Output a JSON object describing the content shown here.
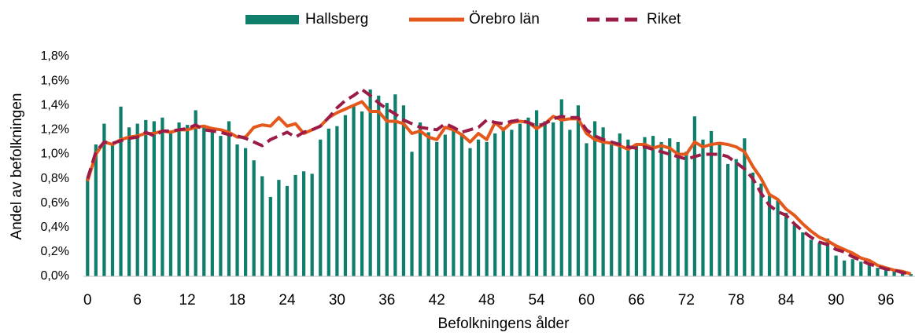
{
  "chart_data": {
    "type": "bar",
    "x_label": "Befolkningens ålder",
    "y_label": "Andel av befolkningen",
    "categories": [
      0,
      null,
      null,
      null,
      null,
      null,
      6,
      null,
      null,
      null,
      null,
      null,
      12,
      null,
      null,
      null,
      null,
      null,
      18,
      null,
      null,
      null,
      null,
      null,
      24,
      null,
      null,
      null,
      null,
      null,
      30,
      null,
      null,
      null,
      null,
      null,
      36,
      null,
      null,
      null,
      null,
      null,
      42,
      null,
      null,
      null,
      null,
      null,
      48,
      null,
      null,
      null,
      null,
      null,
      54,
      null,
      null,
      null,
      null,
      null,
      60,
      null,
      null,
      null,
      null,
      null,
      66,
      null,
      null,
      null,
      null,
      null,
      72,
      null,
      null,
      null,
      null,
      null,
      78,
      null,
      null,
      null,
      null,
      null,
      84,
      null,
      null,
      null,
      null,
      null,
      90,
      null,
      null,
      null,
      null,
      null,
      96,
      null,
      null,
      null
    ],
    "ylim": [
      0,
      1.8
    ],
    "yticks": [
      {
        "value": 0,
        "label": "0,0%"
      },
      {
        "value": 0.2,
        "label": "0,2%"
      },
      {
        "value": 0.4,
        "label": "0,4%"
      },
      {
        "value": 0.6,
        "label": "0,6%"
      },
      {
        "value": 0.8,
        "label": "0,8%"
      },
      {
        "value": 1.0,
        "label": "1,0%"
      },
      {
        "value": 1.2,
        "label": "1,2%"
      },
      {
        "value": 1.4,
        "label": "1,4%"
      },
      {
        "value": 1.6,
        "label": "1,6%"
      },
      {
        "value": 1.8,
        "label": "1,8%"
      }
    ],
    "grid": false,
    "legend": "top",
    "series": [
      {
        "name": "Hallsberg",
        "type": "bar",
        "color": "#0f7f6c",
        "values": [
          0.8,
          1.08,
          1.25,
          1.08,
          1.39,
          1.22,
          1.25,
          1.28,
          1.27,
          1.3,
          1.18,
          1.26,
          1.24,
          1.36,
          1.22,
          1.18,
          1.15,
          1.27,
          1.08,
          1.05,
          0.95,
          0.82,
          0.65,
          0.79,
          0.74,
          0.83,
          0.86,
          0.84,
          1.12,
          1.21,
          1.23,
          1.32,
          1.4,
          1.35,
          1.53,
          1.48,
          1.42,
          1.49,
          1.4,
          1.02,
          1.26,
          1.18,
          1.1,
          1.16,
          1.22,
          1.17,
          1.05,
          1.12,
          1.1,
          1.17,
          1.22,
          1.2,
          1.25,
          1.3,
          1.36,
          1.27,
          1.26,
          1.45,
          1.2,
          1.4,
          1.09,
          1.27,
          1.22,
          1.08,
          1.17,
          1.12,
          1.08,
          1.14,
          1.15,
          1.1,
          1.13,
          1.1,
          1.02,
          1.31,
          1.12,
          1.19,
          1.08,
          0.92,
          0.96,
          1.13,
          0.85,
          0.76,
          0.66,
          0.62,
          0.52,
          0.42,
          0.36,
          0.3,
          0.27,
          0.31,
          0.17,
          0.13,
          0.14,
          0.12,
          0.1,
          0.07,
          0.05,
          0.05,
          0.04,
          0.02
        ]
      },
      {
        "name": "Örebro län",
        "type": "line",
        "dash": false,
        "color": "#e4581b",
        "values": [
          0.78,
          1.0,
          1.1,
          1.08,
          1.12,
          1.14,
          1.15,
          1.17,
          1.17,
          1.19,
          1.18,
          1.2,
          1.2,
          1.22,
          1.23,
          1.21,
          1.2,
          1.18,
          1.14,
          1.14,
          1.22,
          1.24,
          1.23,
          1.3,
          1.23,
          1.25,
          1.17,
          1.2,
          1.23,
          1.3,
          1.34,
          1.37,
          1.4,
          1.43,
          1.35,
          1.35,
          1.27,
          1.27,
          1.25,
          1.17,
          1.19,
          1.14,
          1.12,
          1.22,
          1.2,
          1.16,
          1.1,
          1.17,
          1.12,
          1.26,
          1.2,
          1.26,
          1.27,
          1.26,
          1.21,
          1.25,
          1.31,
          1.28,
          1.29,
          1.29,
          1.17,
          1.12,
          1.1,
          1.09,
          1.07,
          1.04,
          1.08,
          1.08,
          1.05,
          1.07,
          1.05,
          1.0,
          1.0,
          1.1,
          1.06,
          1.08,
          1.09,
          1.08,
          1.06,
          1.02,
          0.9,
          0.8,
          0.67,
          0.63,
          0.55,
          0.5,
          0.43,
          0.37,
          0.32,
          0.29,
          0.25,
          0.22,
          0.19,
          0.15,
          0.13,
          0.09,
          0.07,
          0.05,
          0.04,
          0.02
        ]
      },
      {
        "name": "Riket",
        "type": "line",
        "dash": true,
        "color": "#9c1c48",
        "values": [
          0.8,
          1.02,
          1.1,
          1.09,
          1.11,
          1.13,
          1.14,
          1.18,
          1.15,
          1.19,
          1.19,
          1.2,
          1.21,
          1.24,
          1.2,
          1.19,
          1.18,
          1.16,
          1.15,
          1.13,
          1.1,
          1.07,
          1.12,
          1.15,
          1.18,
          1.14,
          1.18,
          1.2,
          1.23,
          1.3,
          1.38,
          1.44,
          1.48,
          1.53,
          1.48,
          1.42,
          1.37,
          1.33,
          1.28,
          1.25,
          1.22,
          1.21,
          1.2,
          1.25,
          1.22,
          1.18,
          1.2,
          1.22,
          1.28,
          1.26,
          1.25,
          1.27,
          1.28,
          1.26,
          1.23,
          1.25,
          1.29,
          1.31,
          1.3,
          1.3,
          1.2,
          1.15,
          1.12,
          1.1,
          1.08,
          1.06,
          1.05,
          1.06,
          1.04,
          1.02,
          1.0,
          0.98,
          0.96,
          0.98,
          1.0,
          1.0,
          1.0,
          0.98,
          0.93,
          0.88,
          0.8,
          0.68,
          0.58,
          0.53,
          0.5,
          0.43,
          0.37,
          0.32,
          0.28,
          0.26,
          0.22,
          0.2,
          0.16,
          0.13,
          0.1,
          0.08,
          0.06,
          0.05,
          0.03,
          0.02
        ]
      }
    ]
  }
}
